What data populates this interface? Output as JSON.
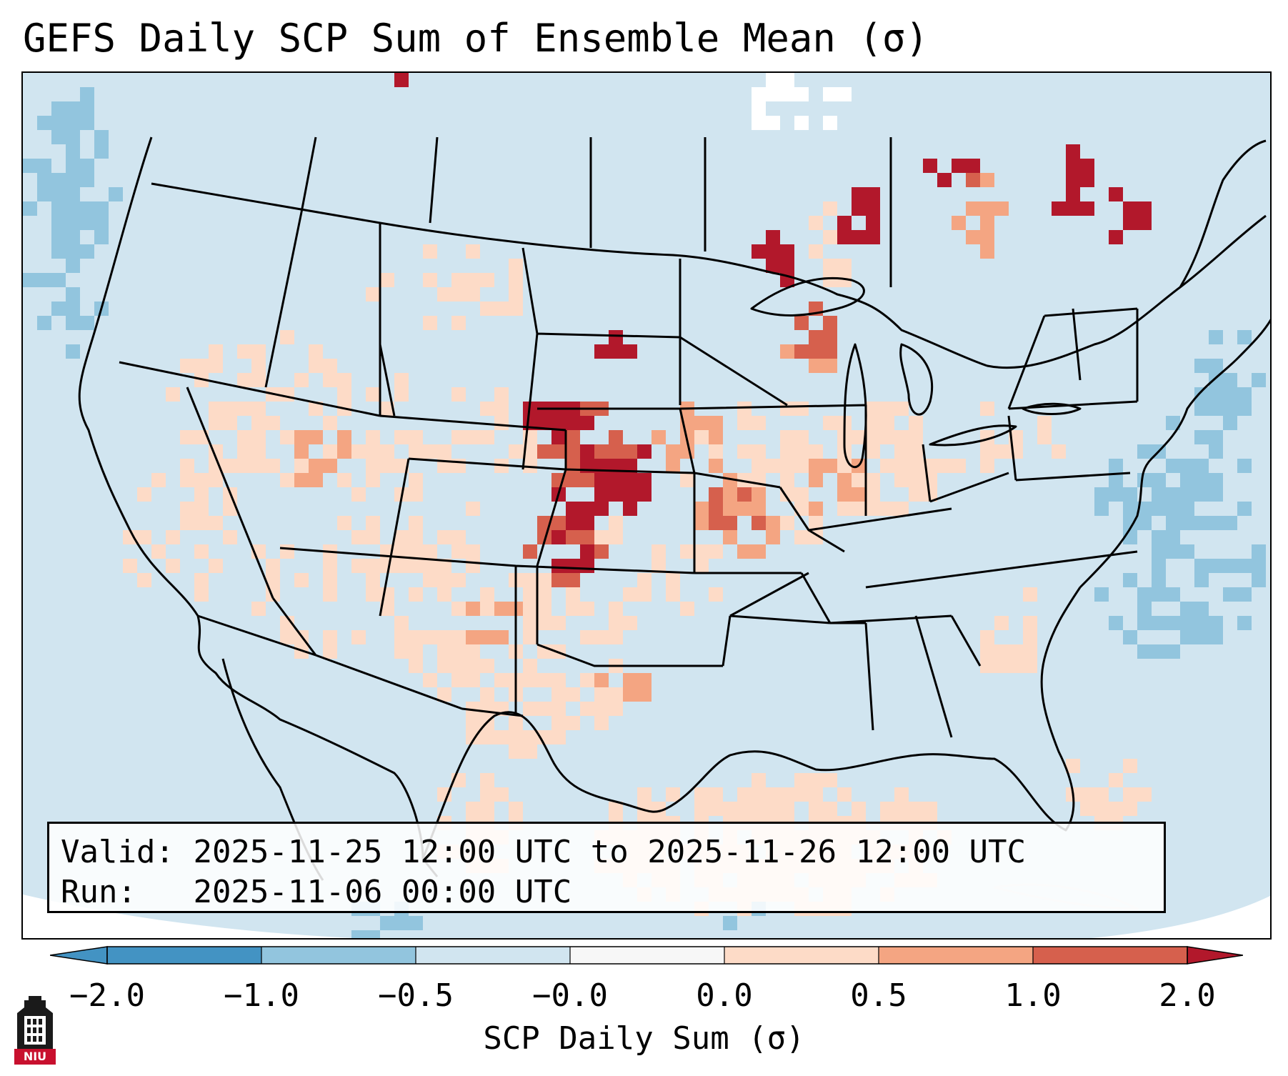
{
  "title": "GEFS Daily SCP Sum of Ensemble Mean (σ)",
  "info": {
    "valid_label": "Valid:",
    "valid_value": "2025-11-25 12:00 UTC to 2025-11-26 12:00 UTC",
    "run_label": "Run:",
    "run_value": "2025-11-06 00:00 UTC"
  },
  "colorbar": {
    "label": "SCP Daily Sum (σ)",
    "ticks": [
      "−2.0",
      "−1.0",
      "−0.5",
      "−0.0",
      "0.0",
      "0.5",
      "1.0",
      "2.0"
    ],
    "bin_colors": [
      "#4393c3",
      "#92c5de",
      "#d1e5f0",
      "#f7f7f7",
      "#fddbc7",
      "#f4a582",
      "#d6604d",
      "#b2182b"
    ],
    "extend": "both"
  },
  "legend_colors": {
    "background": "#d1e5f0",
    "low": "#92c5de",
    "very_low": "#4393c3",
    "high": "#fddbc7",
    "higher": "#f4a582",
    "very_high": "#d6604d",
    "extreme": "#b2182b",
    "near_zero": "#f7f7f7"
  },
  "logo": {
    "text": "NIU",
    "color": "#c8102e"
  }
}
